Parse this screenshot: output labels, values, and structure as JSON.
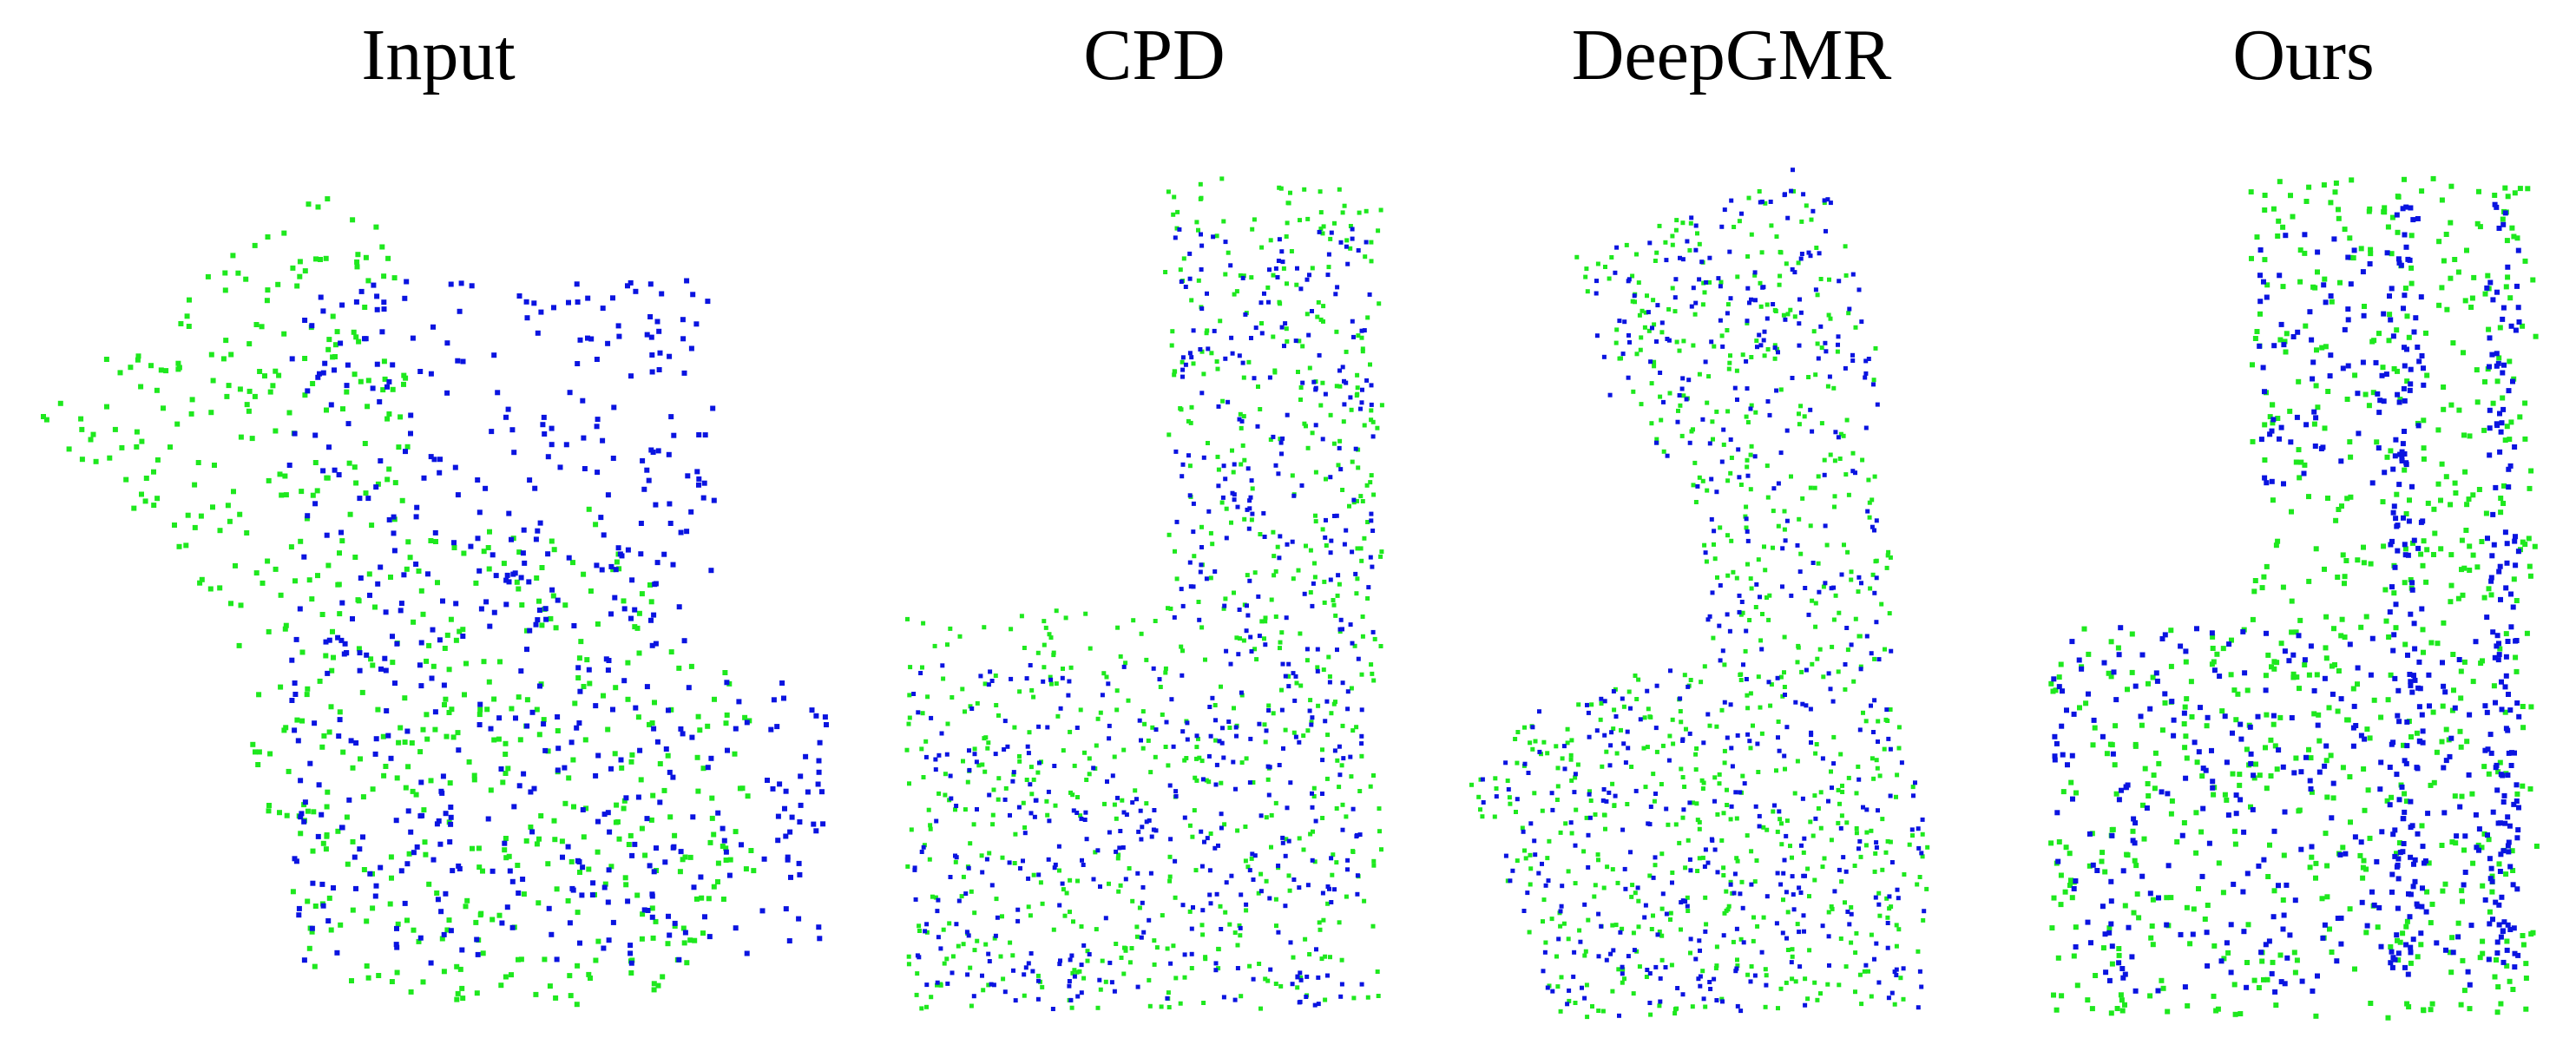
{
  "figure": {
    "panels": [
      {
        "title": "Input",
        "layout": "input"
      },
      {
        "title": "CPD",
        "layout": "cpd"
      },
      {
        "title": "DeepGMR",
        "layout": "deepgmr"
      },
      {
        "title": "Ours",
        "layout": "ours"
      }
    ],
    "colors": {
      "source": "#0a14e0",
      "target": "#1ee81e"
    }
  }
}
